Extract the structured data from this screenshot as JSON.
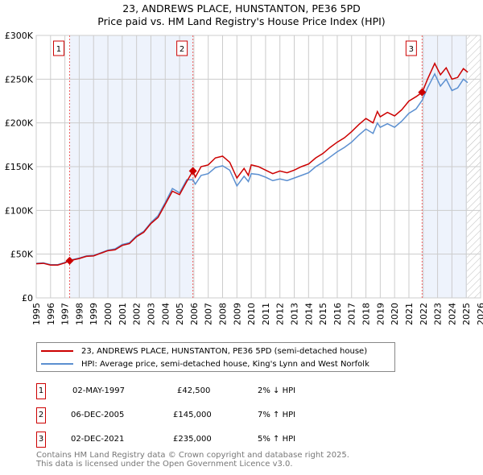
{
  "title": "23, ANDREWS PLACE, HUNSTANTON, PE36 5PD",
  "subtitle": "Price paid vs. HM Land Registry's House Price Index (HPI)",
  "colors": {
    "property": "#cc0000",
    "hpi": "#5b8fd0",
    "shade": "#eef3fc"
  },
  "chart_data": {
    "type": "line",
    "xlim": [
      1995,
      2026
    ],
    "ylim": [
      0,
      300000
    ],
    "yticks": [
      {
        "v": 0,
        "label": "£0"
      },
      {
        "v": 50000,
        "label": "£50K"
      },
      {
        "v": 100000,
        "label": "£100K"
      },
      {
        "v": 150000,
        "label": "£150K"
      },
      {
        "v": 200000,
        "label": "£200K"
      },
      {
        "v": 250000,
        "label": "£250K"
      },
      {
        "v": 300000,
        "label": "£300K"
      }
    ],
    "xticks": [
      "1995",
      "1996",
      "1997",
      "1998",
      "1999",
      "2000",
      "2001",
      "2002",
      "2003",
      "2004",
      "2005",
      "2006",
      "2007",
      "2008",
      "2009",
      "2010",
      "2011",
      "2012",
      "2013",
      "2014",
      "2015",
      "2016",
      "2017",
      "2018",
      "2019",
      "2020",
      "2021",
      "2022",
      "2023",
      "2024",
      "2025",
      "2026"
    ],
    "x": [
      1995,
      1995.5,
      1996,
      1996.5,
      1997,
      1997.33,
      1998,
      1998.5,
      1999,
      1999.5,
      2000,
      2000.5,
      2001,
      2001.5,
      2002,
      2002.5,
      2003,
      2003.5,
      2004,
      2004.5,
      2005,
      2005.5,
      2005.93,
      2006.1,
      2006.5,
      2007,
      2007.5,
      2008,
      2008.5,
      2009,
      2009.5,
      2009.8,
      2010,
      2010.5,
      2011,
      2011.5,
      2012,
      2012.5,
      2013,
      2013.5,
      2014,
      2014.5,
      2015,
      2015.5,
      2016,
      2016.5,
      2017,
      2017.5,
      2018,
      2018.5,
      2018.8,
      2019,
      2019.5,
      2020,
      2020.5,
      2021,
      2021.5,
      2021.93,
      2022.3,
      2022.8,
      2023.2,
      2023.6,
      2024,
      2024.4,
      2024.8,
      2025.1
    ],
    "series": [
      {
        "name": "23, ANDREWS PLACE, HUNSTANTON, PE36 5PD (semi-detached house)",
        "color": "#cc0000",
        "values": [
          39000,
          39500,
          37500,
          37500,
          40000,
          42500,
          45000,
          47500,
          48000,
          51000,
          54000,
          55000,
          60000,
          62000,
          70000,
          75000,
          85000,
          92000,
          107000,
          122000,
          118000,
          133000,
          145000,
          138000,
          150000,
          152000,
          160000,
          162000,
          155000,
          137000,
          148000,
          140000,
          152000,
          150000,
          146000,
          142000,
          145000,
          143000,
          146000,
          150000,
          153000,
          160000,
          165000,
          172000,
          178000,
          183000,
          190000,
          198000,
          205000,
          200000,
          213000,
          207000,
          212000,
          208000,
          215000,
          225000,
          230000,
          235000,
          250000,
          268000,
          255000,
          263000,
          250000,
          252000,
          262000,
          258000
        ]
      },
      {
        "name": "HPI: Average price, semi-detached house, King's Lynn and West Norfolk",
        "color": "#5b8fd0",
        "values": [
          39500,
          40000,
          38000,
          38000,
          40500,
          43000,
          45500,
          48000,
          48500,
          51500,
          54500,
          56000,
          61000,
          63000,
          71000,
          76000,
          86000,
          94000,
          109000,
          125000,
          120000,
          135000,
          135000,
          130000,
          140000,
          142000,
          149000,
          151000,
          146000,
          128000,
          139000,
          133000,
          142000,
          141000,
          138000,
          134000,
          136000,
          134000,
          137000,
          140000,
          143000,
          150000,
          155000,
          161000,
          167000,
          172000,
          178000,
          186000,
          193000,
          188000,
          200000,
          195000,
          199000,
          195000,
          202000,
          211000,
          216000,
          226000,
          240000,
          256000,
          242000,
          250000,
          237000,
          240000,
          250000,
          246000
        ]
      }
    ],
    "sales": [
      {
        "label": "1",
        "x": 1997.33,
        "y": 42500
      },
      {
        "label": "2",
        "x": 2005.93,
        "y": 145000
      },
      {
        "label": "3",
        "x": 2021.92,
        "y": 235000
      }
    ],
    "shaded": [
      [
        1997.33,
        2005.93
      ],
      [
        2021.92,
        2025.05
      ]
    ],
    "hatch_from": 2025.05
  },
  "legend": [
    "23, ANDREWS PLACE, HUNSTANTON, PE36 5PD (semi-detached house)",
    "HPI: Average price, semi-detached house, King's Lynn and West Norfolk"
  ],
  "sales_table": [
    {
      "num": "1",
      "date": "02-MAY-1997",
      "price": "£42,500",
      "hpi": "2% ↓ HPI"
    },
    {
      "num": "2",
      "date": "06-DEC-2005",
      "price": "£145,000",
      "hpi": "7% ↑ HPI"
    },
    {
      "num": "3",
      "date": "02-DEC-2021",
      "price": "£235,000",
      "hpi": "5% ↑ HPI"
    }
  ],
  "footer": [
    "Contains HM Land Registry data © Crown copyright and database right 2025.",
    "This data is licensed under the Open Government Licence v3.0."
  ]
}
